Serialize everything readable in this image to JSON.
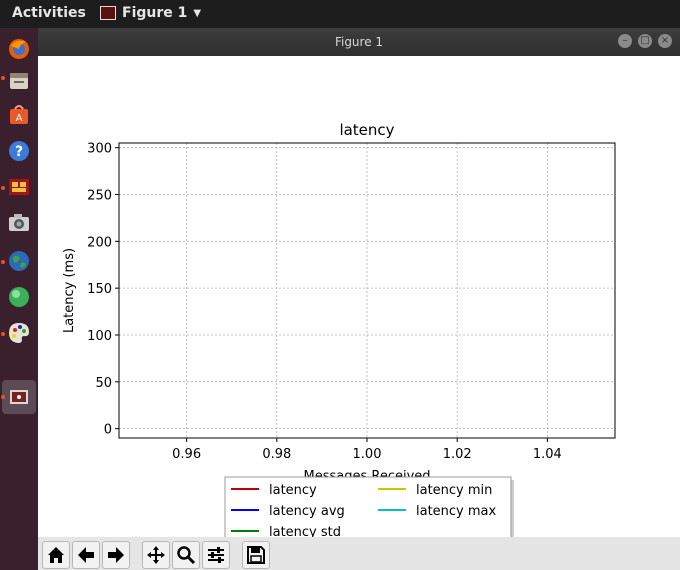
{
  "topbar": {
    "activities": "Activities",
    "app_name": "Figure 1"
  },
  "window": {
    "title": "Figure 1"
  },
  "chart_data": {
    "type": "line",
    "title": "latency",
    "xlabel": "Messages Received",
    "ylabel": "Latency (ms)",
    "xlim": [
      0.945,
      1.055
    ],
    "ylim": [
      -10,
      305
    ],
    "xticks": [
      0.96,
      0.98,
      1.0,
      1.02,
      1.04
    ],
    "xtick_labels": [
      "0.96",
      "0.98",
      "1.00",
      "1.02",
      "1.04"
    ],
    "yticks": [
      0,
      50,
      100,
      150,
      200,
      250,
      300
    ],
    "ytick_labels": [
      "0",
      "50",
      "100",
      "150",
      "200",
      "250",
      "300"
    ],
    "grid": true,
    "legend_position": "bottom-center",
    "series": [
      {
        "name": "latency",
        "color": "#c00000",
        "x": [],
        "y": []
      },
      {
        "name": "latency avg",
        "color": "#0000ff",
        "x": [],
        "y": []
      },
      {
        "name": "latency std",
        "color": "#008000",
        "x": [],
        "y": []
      },
      {
        "name": "latency min",
        "color": "#c8c800",
        "x": [],
        "y": []
      },
      {
        "name": "latency max",
        "color": "#00c0c0",
        "x": [],
        "y": []
      }
    ]
  },
  "dock_icons": [
    "firefox-icon",
    "files-icon",
    "software-center-icon",
    "help-icon",
    "app-icon",
    "camera-icon",
    "globe-icon",
    "green-ball-icon",
    "palette-icon",
    "figure-window-icon"
  ],
  "toolbar_icons": [
    "home-icon",
    "back-icon",
    "forward-icon",
    "pan-icon",
    "zoom-icon",
    "configure-subplots-icon",
    "save-icon"
  ]
}
